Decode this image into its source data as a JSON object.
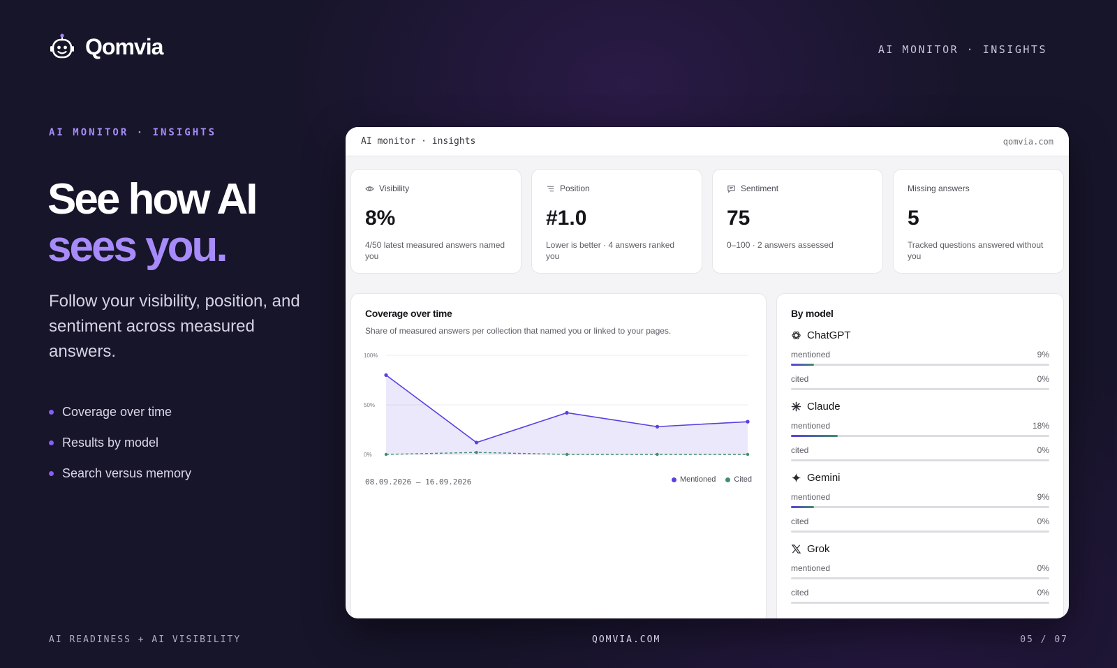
{
  "brand": {
    "name": "Qomvia"
  },
  "header": {
    "right_label": "AI MONITOR · INSIGHTS"
  },
  "hero": {
    "eyebrow": "AI MONITOR · INSIGHTS",
    "title_line1": "See how AI",
    "title_line2": "sees you.",
    "lead": "Follow your visibility, position, and sentiment across measured answers.",
    "bullets": [
      "Coverage over time",
      "Results by model",
      "Search versus memory"
    ]
  },
  "footer": {
    "left": "AI READINESS + AI VISIBILITY",
    "center": "QOMVIA.COM",
    "right": "05 / 07"
  },
  "panel": {
    "title": "AI monitor · insights",
    "domain": "qomvia.com",
    "stats": [
      {
        "icon": "eye-icon",
        "label": "Visibility",
        "value": "8%",
        "note": "4/50 latest measured answers named you"
      },
      {
        "icon": "list-icon",
        "label": "Position",
        "value": "#1.0",
        "note": "Lower is better · 4 answers ranked you"
      },
      {
        "icon": "comment-icon",
        "label": "Sentiment",
        "value": "75",
        "note": "0–100 · 2 answers assessed"
      },
      {
        "icon": "",
        "label": "Missing answers",
        "value": "5",
        "note": "Tracked questions answered without you"
      }
    ],
    "coverage": {
      "title": "Coverage over time",
      "subtitle": "Share of measured answers per collection that named you or linked to your pages.",
      "date_range": "08.09.2026 – 16.09.2026",
      "legend": {
        "mentioned": "Mentioned",
        "cited": "Cited"
      }
    },
    "by_model": {
      "title": "By model",
      "models": [
        {
          "name": "ChatGPT",
          "icon": "openai-icon",
          "mentioned_label": "mentioned",
          "mentioned": "9%",
          "mentioned_frac": 0.09,
          "cited_label": "cited",
          "cited": "0%",
          "cited_frac": 0
        },
        {
          "name": "Claude",
          "icon": "claude-asterisk-icon",
          "mentioned_label": "mentioned",
          "mentioned": "18%",
          "mentioned_frac": 0.18,
          "cited_label": "cited",
          "cited": "0%",
          "cited_frac": 0
        },
        {
          "name": "Gemini",
          "icon": "gemini-sparkle-icon",
          "mentioned_label": "mentioned",
          "mentioned": "9%",
          "mentioned_frac": 0.09,
          "cited_label": "cited",
          "cited": "0%",
          "cited_frac": 0
        },
        {
          "name": "Grok",
          "icon": "x-logo-icon",
          "mentioned_label": "mentioned",
          "mentioned": "0%",
          "mentioned_frac": 0,
          "cited_label": "cited",
          "cited": "0%",
          "cited_frac": 0
        }
      ]
    }
  },
  "colors": {
    "accent": "#a78bfa",
    "mentioned": "#5b3fe0",
    "cited": "#3f8f6a",
    "background": "#17152a"
  },
  "chart_data": {
    "type": "line",
    "x": [
      "08.09.2026",
      "",
      "",
      "",
      "16.09.2026"
    ],
    "series": [
      {
        "name": "Mentioned",
        "values": [
          80,
          12,
          42,
          28,
          33
        ]
      },
      {
        "name": "Cited",
        "values": [
          0,
          2,
          0,
          0,
          0
        ]
      }
    ],
    "y_ticks": [
      "100%",
      "50%",
      "0%"
    ],
    "ylim": [
      0,
      100
    ],
    "grid": true,
    "legend": "bottom-right"
  }
}
